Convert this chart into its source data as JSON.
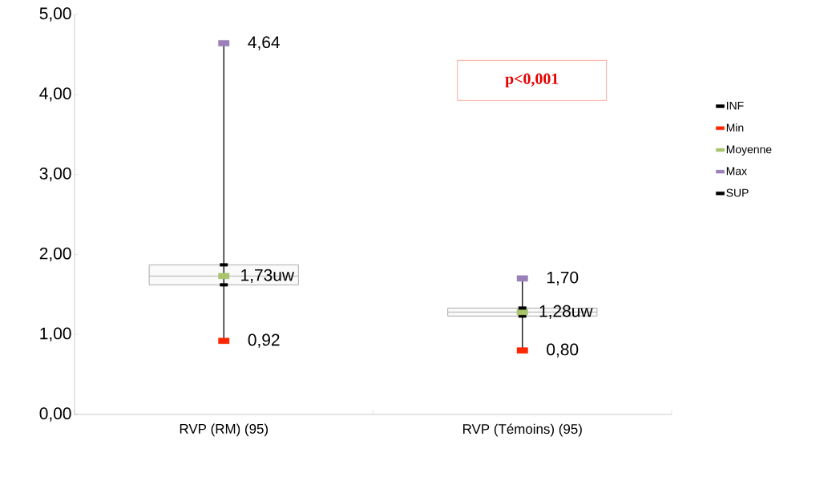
{
  "chart_data": {
    "type": "box",
    "categories": [
      "RVP  (RM) (95)",
      "RVP (Témoins) (95)"
    ],
    "boxes": [
      {
        "low": 0.92,
        "q1": 1.62,
        "median": 1.73,
        "q3": 1.87,
        "high": 4.64
      },
      {
        "low": 0.8,
        "q1": 1.23,
        "median": 1.28,
        "q3": 1.33,
        "high": 1.7
      }
    ],
    "series": [
      {
        "name": "INF",
        "type": "scatter",
        "color": "#000000",
        "values": [
          1.62,
          1.23
        ]
      },
      {
        "name": "Min",
        "type": "scatter",
        "color": "#ff2600",
        "values": [
          0.92,
          0.8
        ],
        "value_labels": [
          "0,92",
          "0,80"
        ]
      },
      {
        "name": "Moyenne",
        "type": "scatter",
        "color": "#a9c46c",
        "values": [
          1.73,
          1.28
        ],
        "value_labels": [
          "1,73uw",
          "1,28uw"
        ]
      },
      {
        "name": "Max",
        "type": "scatter",
        "color": "#9a80b8",
        "values": [
          4.64,
          1.7
        ],
        "value_labels": [
          "4,64",
          "1,70"
        ]
      },
      {
        "name": "SUP",
        "type": "scatter",
        "color": "#000000",
        "values": [
          1.87,
          1.33
        ]
      }
    ],
    "ylim": [
      0,
      5
    ],
    "yticks": [
      {
        "value": 0,
        "label": "0,00"
      },
      {
        "value": 1,
        "label": "1,00"
      },
      {
        "value": 2,
        "label": "2,00"
      },
      {
        "value": 3,
        "label": "3,00"
      },
      {
        "value": 4,
        "label": "4,00"
      },
      {
        "value": 5,
        "label": "5,00"
      }
    ],
    "legend": "right",
    "grid": false,
    "annotations": [
      "p<0,001"
    ]
  }
}
